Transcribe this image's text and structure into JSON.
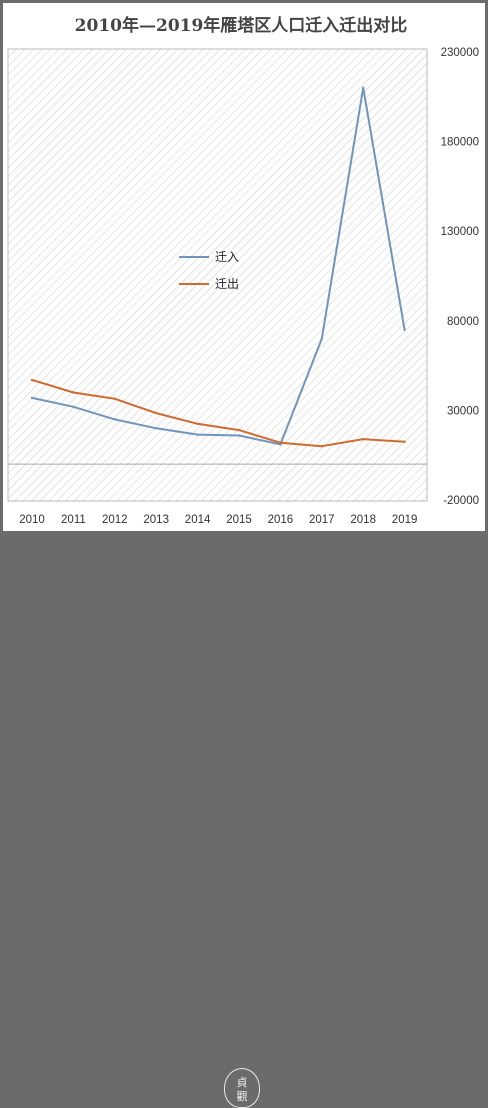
{
  "chart_data": {
    "type": "line",
    "title": "2010年—2019年雁塔区人口迁入迁出对比",
    "categories": [
      "2010",
      "2011",
      "2012",
      "2013",
      "2014",
      "2015",
      "2016",
      "2017",
      "2018",
      "2019"
    ],
    "series": [
      {
        "name": "迁入",
        "color": "#6f95bc",
        "values": [
          37000,
          32000,
          25000,
          20000,
          16500,
          16000,
          11000,
          70000,
          210000,
          75000
        ]
      },
      {
        "name": "迁出",
        "color": "#cf6a2e",
        "values": [
          47000,
          40000,
          36500,
          28500,
          22500,
          19000,
          12000,
          10000,
          14000,
          12500
        ]
      }
    ],
    "ylim": [
      -20000,
      230000
    ],
    "yticks": [
      -20000,
      30000,
      80000,
      130000,
      180000,
      230000
    ],
    "ytick_labels": [
      "-20000",
      "30000",
      "80000",
      "130000",
      "180000",
      "230000"
    ],
    "y_axis_side": "right",
    "grid": false,
    "legend_position": "center-left",
    "xlabel": "",
    "ylabel": ""
  },
  "footer": {
    "seal_text": "貞觀"
  }
}
